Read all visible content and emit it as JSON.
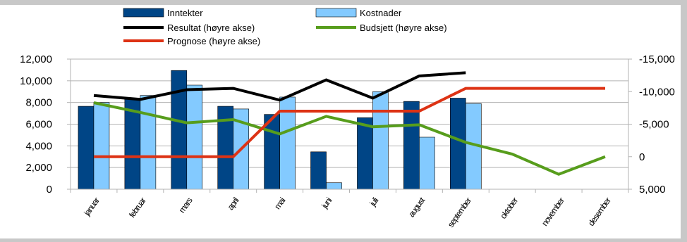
{
  "chart_data": {
    "type": "bar",
    "categories": [
      "januar",
      "februar",
      "mars",
      "april",
      "mai",
      "juni",
      "juli",
      "august",
      "september",
      "oktober",
      "november",
      "desember"
    ],
    "series": [
      {
        "name": "Inntekter",
        "kind": "bar",
        "axis": "left",
        "color": "#004586",
        "values": [
          7650,
          8300,
          10950,
          7650,
          6900,
          3450,
          6600,
          8100,
          8400,
          null,
          null,
          null
        ]
      },
      {
        "name": "Kostnader",
        "kind": "bar",
        "axis": "left",
        "color": "#83caff",
        "values": [
          8000,
          8650,
          9600,
          7400,
          8500,
          600,
          9000,
          4800,
          7900,
          null,
          null,
          null
        ]
      },
      {
        "name": "Resultat (høyre akse)",
        "kind": "line",
        "axis": "right",
        "color": "#000000",
        "values": [
          -9400,
          -8800,
          -10300,
          -10500,
          -8700,
          -11800,
          -9000,
          -12400,
          -12900,
          null,
          null,
          null
        ]
      },
      {
        "name": "Budsjett (høyre akse)",
        "kind": "line",
        "axis": "right",
        "color": "#579d1c",
        "values": [
          -8300,
          -6800,
          -5200,
          -5700,
          -3500,
          -6200,
          -4600,
          -4900,
          -2200,
          -400,
          2700,
          0
        ]
      },
      {
        "name": "Prognose (høyre akse)",
        "kind": "line",
        "axis": "right",
        "color": "#dd3214",
        "values": [
          0,
          0,
          0,
          0,
          -7000,
          -7000,
          -7000,
          -7000,
          -10500,
          -10500,
          -10500,
          -10500
        ]
      }
    ],
    "y_left": {
      "min": 0,
      "max": 12000,
      "ticks": [
        "0",
        "2,000",
        "4,000",
        "6,000",
        "8,000",
        "10,000",
        "12,000"
      ]
    },
    "y_right": {
      "min": -15000,
      "max": 5000,
      "reversed": true,
      "ticks": [
        "5,000",
        "0",
        "-5,000",
        "-10,000",
        "-15,000"
      ]
    },
    "grid": "horizontal",
    "legend_position": "top"
  }
}
